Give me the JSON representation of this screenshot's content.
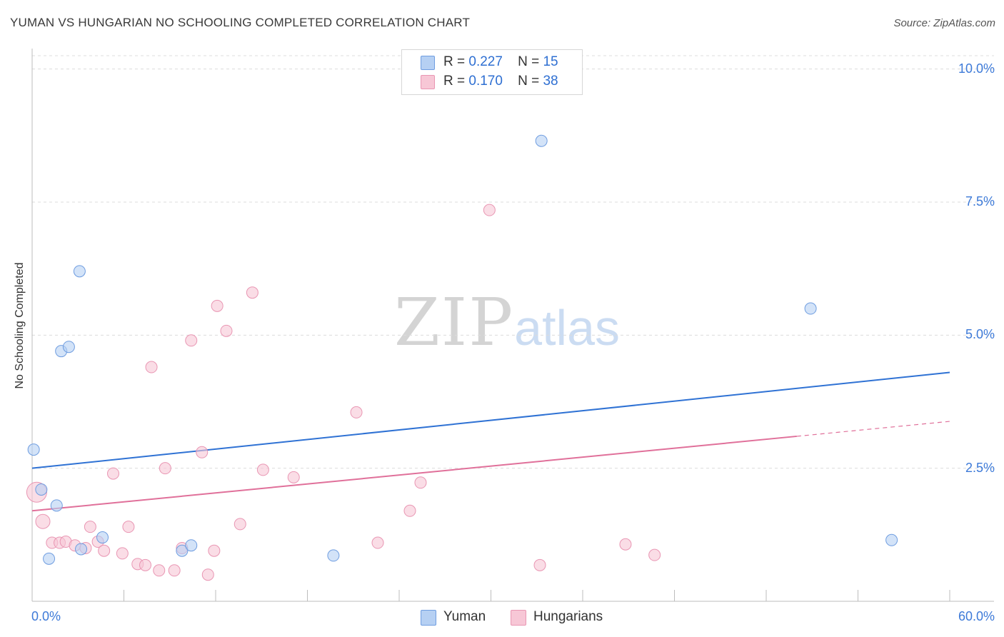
{
  "title": "YUMAN VS HUNGARIAN NO SCHOOLING COMPLETED CORRELATION CHART",
  "source": "Source: ZipAtlas.com",
  "watermark": {
    "zip": "ZIP",
    "atlas": "atlas"
  },
  "colors": {
    "yuman_fill": "#b6d0f3",
    "yuman_stroke": "#6f9de0",
    "yuman_line": "#2f72d4",
    "hung_fill": "#f7c7d6",
    "hung_stroke": "#e996b3",
    "hung_line": "#e0709a",
    "tick_text": "#3d7ad8"
  },
  "stats": [
    {
      "r_label": "R =",
      "r_value": "0.227",
      "n_label": "N =",
      "n_value": "15"
    },
    {
      "r_label": "R =",
      "r_value": "0.170",
      "n_label": "N =",
      "n_value": "38"
    }
  ],
  "legend": [
    {
      "label": "Yuman"
    },
    {
      "label": "Hungarians"
    }
  ],
  "chart_data": {
    "type": "scatter",
    "title": "YUMAN VS HUNGARIAN NO SCHOOLING COMPLETED CORRELATION CHART",
    "xlabel": "",
    "ylabel": "No Schooling Completed",
    "xlim": [
      0,
      60
    ],
    "ylim": [
      0,
      10.25
    ],
    "x_tick_labels": [
      "0.0%",
      "60.0%"
    ],
    "y_ticks": [
      2.5,
      5.0,
      7.5,
      10.0
    ],
    "y_tick_labels": [
      "2.5%",
      "5.0%",
      "7.5%",
      "10.0%"
    ],
    "grid": true,
    "legend_position": "bottom-center",
    "series": [
      {
        "name": "Yuman",
        "points": [
          {
            "x": 0.1,
            "y": 2.85,
            "size": 8
          },
          {
            "x": 0.6,
            "y": 2.1,
            "size": 8
          },
          {
            "x": 1.1,
            "y": 0.8,
            "size": 8
          },
          {
            "x": 1.6,
            "y": 1.8,
            "size": 8
          },
          {
            "x": 1.9,
            "y": 4.7,
            "size": 8
          },
          {
            "x": 2.4,
            "y": 4.78,
            "size": 8
          },
          {
            "x": 3.1,
            "y": 6.2,
            "size": 8
          },
          {
            "x": 3.2,
            "y": 0.98,
            "size": 8
          },
          {
            "x": 4.6,
            "y": 1.2,
            "size": 8
          },
          {
            "x": 9.8,
            "y": 0.95,
            "size": 8
          },
          {
            "x": 10.4,
            "y": 1.05,
            "size": 8
          },
          {
            "x": 19.7,
            "y": 0.86,
            "size": 8
          },
          {
            "x": 33.3,
            "y": 8.65,
            "size": 8
          },
          {
            "x": 50.9,
            "y": 5.5,
            "size": 8
          },
          {
            "x": 56.2,
            "y": 1.15,
            "size": 8
          }
        ],
        "trendline": {
          "x": [
            0,
            60
          ],
          "y": [
            2.5,
            4.3
          ]
        }
      },
      {
        "name": "Hungarians",
        "points": [
          {
            "x": 0.3,
            "y": 2.05,
            "size": 14
          },
          {
            "x": 0.7,
            "y": 1.5,
            "size": 10
          },
          {
            "x": 1.3,
            "y": 1.1,
            "size": 8
          },
          {
            "x": 1.8,
            "y": 1.1,
            "size": 8
          },
          {
            "x": 2.2,
            "y": 1.12,
            "size": 8
          },
          {
            "x": 2.8,
            "y": 1.05,
            "size": 8
          },
          {
            "x": 3.5,
            "y": 1.0,
            "size": 8
          },
          {
            "x": 3.8,
            "y": 1.4,
            "size": 8
          },
          {
            "x": 4.3,
            "y": 1.12,
            "size": 8
          },
          {
            "x": 4.7,
            "y": 0.95,
            "size": 8
          },
          {
            "x": 5.3,
            "y": 2.4,
            "size": 8
          },
          {
            "x": 5.9,
            "y": 0.9,
            "size": 8
          },
          {
            "x": 6.3,
            "y": 1.4,
            "size": 8
          },
          {
            "x": 6.9,
            "y": 0.7,
            "size": 8
          },
          {
            "x": 7.4,
            "y": 0.68,
            "size": 8
          },
          {
            "x": 7.8,
            "y": 4.4,
            "size": 8
          },
          {
            "x": 8.3,
            "y": 0.58,
            "size": 8
          },
          {
            "x": 8.7,
            "y": 2.5,
            "size": 8
          },
          {
            "x": 9.3,
            "y": 0.58,
            "size": 8
          },
          {
            "x": 9.8,
            "y": 1.0,
            "size": 8
          },
          {
            "x": 10.4,
            "y": 4.9,
            "size": 8
          },
          {
            "x": 11.1,
            "y": 2.8,
            "size": 8
          },
          {
            "x": 11.5,
            "y": 0.5,
            "size": 8
          },
          {
            "x": 11.9,
            "y": 0.95,
            "size": 8
          },
          {
            "x": 12.1,
            "y": 5.55,
            "size": 8
          },
          {
            "x": 12.7,
            "y": 5.08,
            "size": 8
          },
          {
            "x": 13.6,
            "y": 1.45,
            "size": 8
          },
          {
            "x": 14.4,
            "y": 5.8,
            "size": 8
          },
          {
            "x": 15.1,
            "y": 2.47,
            "size": 8
          },
          {
            "x": 17.1,
            "y": 2.33,
            "size": 8
          },
          {
            "x": 21.2,
            "y": 3.55,
            "size": 8
          },
          {
            "x": 22.6,
            "y": 1.1,
            "size": 8
          },
          {
            "x": 24.7,
            "y": 1.7,
            "size": 8
          },
          {
            "x": 25.4,
            "y": 2.23,
            "size": 8
          },
          {
            "x": 29.9,
            "y": 7.35,
            "size": 8
          },
          {
            "x": 33.2,
            "y": 0.68,
            "size": 8
          },
          {
            "x": 38.8,
            "y": 1.07,
            "size": 8
          },
          {
            "x": 40.7,
            "y": 0.87,
            "size": 8
          }
        ],
        "trendline": {
          "x": [
            0,
            50
          ],
          "y": [
            1.7,
            3.1
          ],
          "dashed_extension": {
            "x": [
              50,
              60
            ],
            "y": [
              3.1,
              3.38
            ]
          }
        }
      }
    ]
  }
}
